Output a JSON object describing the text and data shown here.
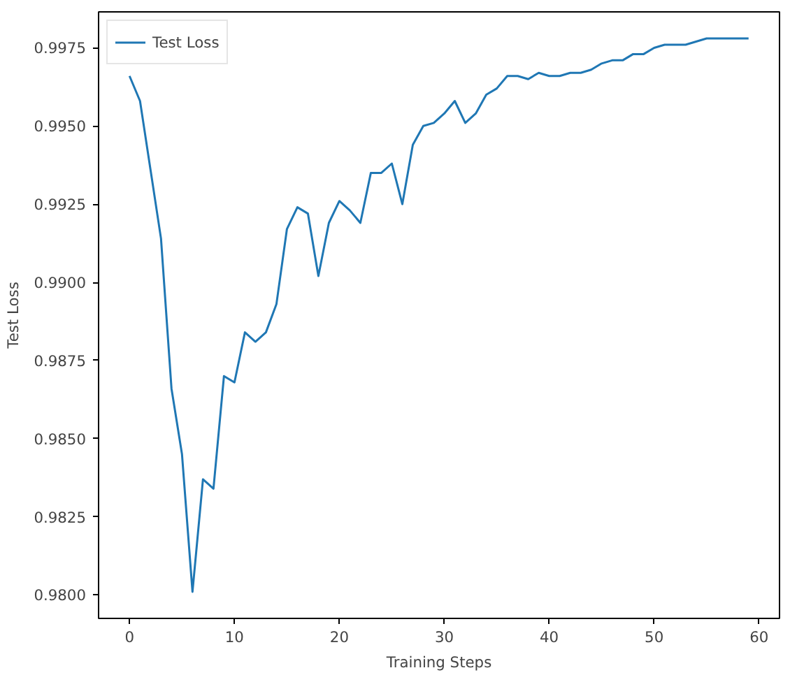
{
  "chart_data": {
    "type": "line",
    "xlabel": "Training Steps",
    "ylabel": "Test Loss",
    "x": [
      0,
      1,
      2,
      3,
      4,
      5,
      6,
      7,
      8,
      9,
      10,
      11,
      12,
      13,
      14,
      15,
      16,
      17,
      18,
      19,
      20,
      21,
      22,
      23,
      24,
      25,
      26,
      27,
      28,
      29,
      30,
      31,
      32,
      33,
      34,
      35,
      36,
      37,
      38,
      39,
      40,
      41,
      42,
      43,
      44,
      45,
      46,
      47,
      48,
      49,
      50,
      51,
      52,
      53,
      54,
      55,
      56,
      57,
      58,
      59
    ],
    "series": [
      {
        "name": "Test Loss",
        "color": "#1f77b4",
        "values": [
          0.9966,
          0.9958,
          0.9936,
          0.9914,
          0.9866,
          0.9845,
          0.9801,
          0.9837,
          0.9834,
          0.987,
          0.9868,
          0.9884,
          0.9881,
          0.9884,
          0.9893,
          0.9917,
          0.9924,
          0.9922,
          0.9902,
          0.9919,
          0.9926,
          0.9923,
          0.9919,
          0.9935,
          0.9935,
          0.9938,
          0.9925,
          0.9944,
          0.995,
          0.9951,
          0.9954,
          0.9958,
          0.9951,
          0.9954,
          0.996,
          0.9962,
          0.9966,
          0.9966,
          0.9965,
          0.9967,
          0.9966,
          0.9966,
          0.9967,
          0.9967,
          0.9968,
          0.997,
          0.9971,
          0.9971,
          0.9973,
          0.9973,
          0.9975,
          0.9976,
          0.9976,
          0.9976,
          0.9977,
          0.9978,
          0.9978,
          0.9978,
          0.9978,
          0.9978
        ]
      }
    ],
    "xlim": [
      -2.95,
      61.95
    ],
    "ylim": [
      0.97925,
      0.99865
    ],
    "xticks": [
      0,
      10,
      20,
      30,
      40,
      50,
      60
    ],
    "yticks": [
      {
        "value": 0.98,
        "label": "0.9800"
      },
      {
        "value": 0.9825,
        "label": "0.9825"
      },
      {
        "value": 0.985,
        "label": "0.9850"
      },
      {
        "value": 0.9875,
        "label": "0.9875"
      },
      {
        "value": 0.99,
        "label": "0.9900"
      },
      {
        "value": 0.9925,
        "label": "0.9925"
      },
      {
        "value": 0.995,
        "label": "0.9950"
      },
      {
        "value": 0.9975,
        "label": "0.9975"
      }
    ],
    "grid": false,
    "legend": "top left",
    "line_style": "solid",
    "marker": "none"
  }
}
